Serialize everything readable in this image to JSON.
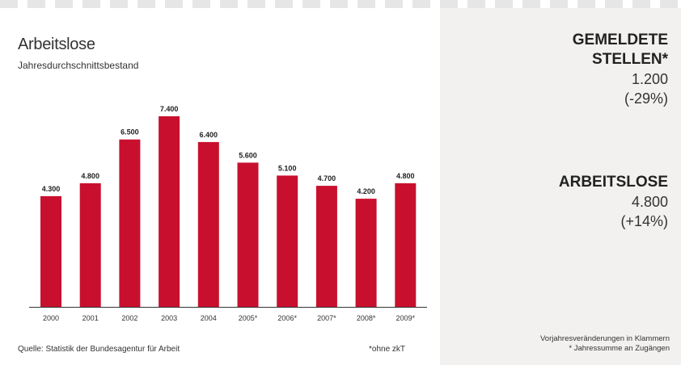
{
  "chart_data": {
    "type": "bar",
    "title": "Arbeitslose",
    "subtitle": "Jahresdurchschnittsbestand",
    "categories": [
      "2000",
      "2001",
      "2002",
      "2003",
      "2004",
      "2005*",
      "2006*",
      "2007*",
      "2008*",
      "2009*"
    ],
    "values": [
      4300,
      4800,
      6500,
      7400,
      6400,
      5600,
      5100,
      4700,
      4200,
      4800
    ],
    "value_labels": [
      "4.300",
      "4.800",
      "6.500",
      "7.400",
      "6.400",
      "5.600",
      "5.100",
      "4.700",
      "4.200",
      "4.800"
    ],
    "bar_color": "#c8102e",
    "ylim": [
      0,
      7400
    ],
    "grid": false,
    "source": "Quelle: Statistik der Bundesagentur für Arbeit",
    "footnote": "*ohne zkT"
  },
  "side": {
    "stellen_label_1": "GEMELDETE",
    "stellen_label_2": "STELLEN*",
    "stellen_value": "1.200",
    "stellen_change": "(-29%)",
    "arbeitslose_label": "ARBEITSLOSE",
    "arbeitslose_value": "4.800",
    "arbeitslose_change": "(+14%)",
    "note_1": "Vorjahresveränderungen in Klammern",
    "note_2": "* Jahressumme an Zugängen"
  },
  "colors": {
    "bar": "#c8102e",
    "side_background": "#f2f1ef"
  }
}
